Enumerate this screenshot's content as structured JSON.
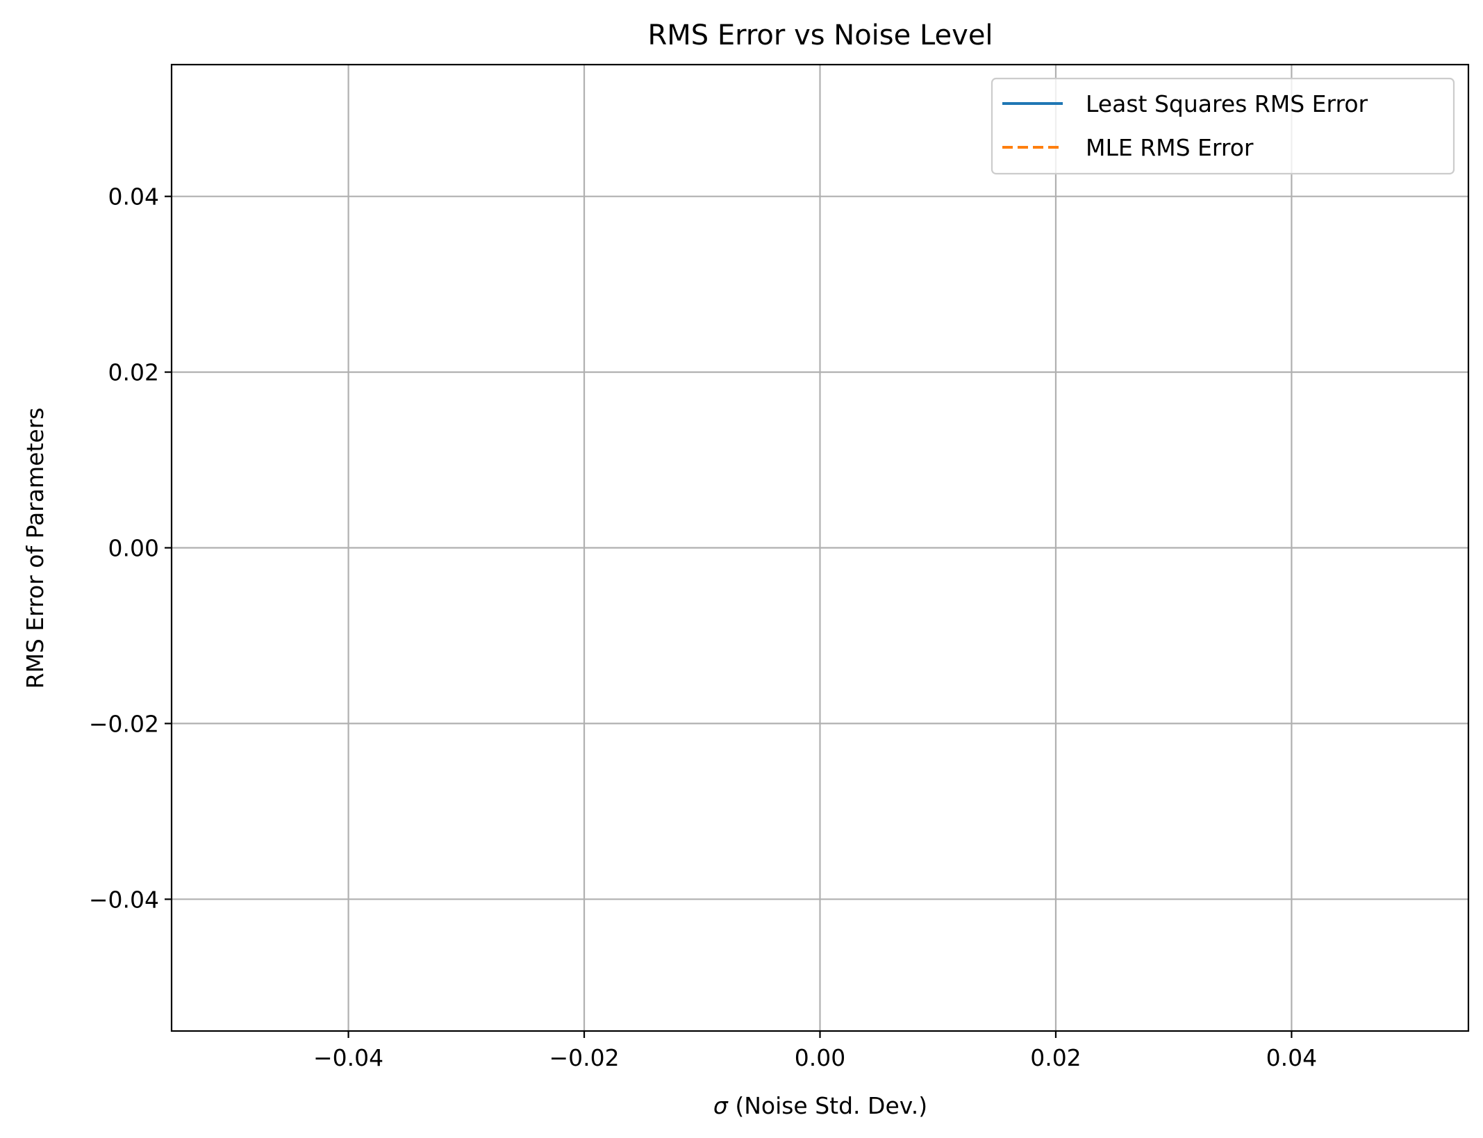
{
  "chart_data": {
    "type": "line",
    "title": "RMS Error vs Noise Level",
    "xlabel_symbol": "σ",
    "xlabel_text": " (Noise Std. Dev.)",
    "ylabel": "RMS Error of Parameters",
    "xlim": [
      -0.055,
      0.055
    ],
    "ylim": [
      -0.055,
      0.055
    ],
    "x_ticks": [
      -0.04,
      -0.02,
      0.0,
      0.02,
      0.04
    ],
    "x_tick_labels": [
      "−0.04",
      "−0.02",
      "0.00",
      "0.02",
      "0.04"
    ],
    "y_ticks": [
      -0.04,
      -0.02,
      0.0,
      0.02,
      0.04
    ],
    "y_tick_labels": [
      "−0.04",
      "−0.02",
      "0.00",
      "0.02",
      "0.04"
    ],
    "grid": true,
    "legend_position": "top-right",
    "series": [
      {
        "name": "Least Squares RMS Error",
        "color": "#1f77b4",
        "line_style": "solid",
        "x": [],
        "y": []
      },
      {
        "name": "MLE RMS Error",
        "color": "#ff7f0e",
        "line_style": "dashed",
        "x": [],
        "y": []
      }
    ]
  }
}
